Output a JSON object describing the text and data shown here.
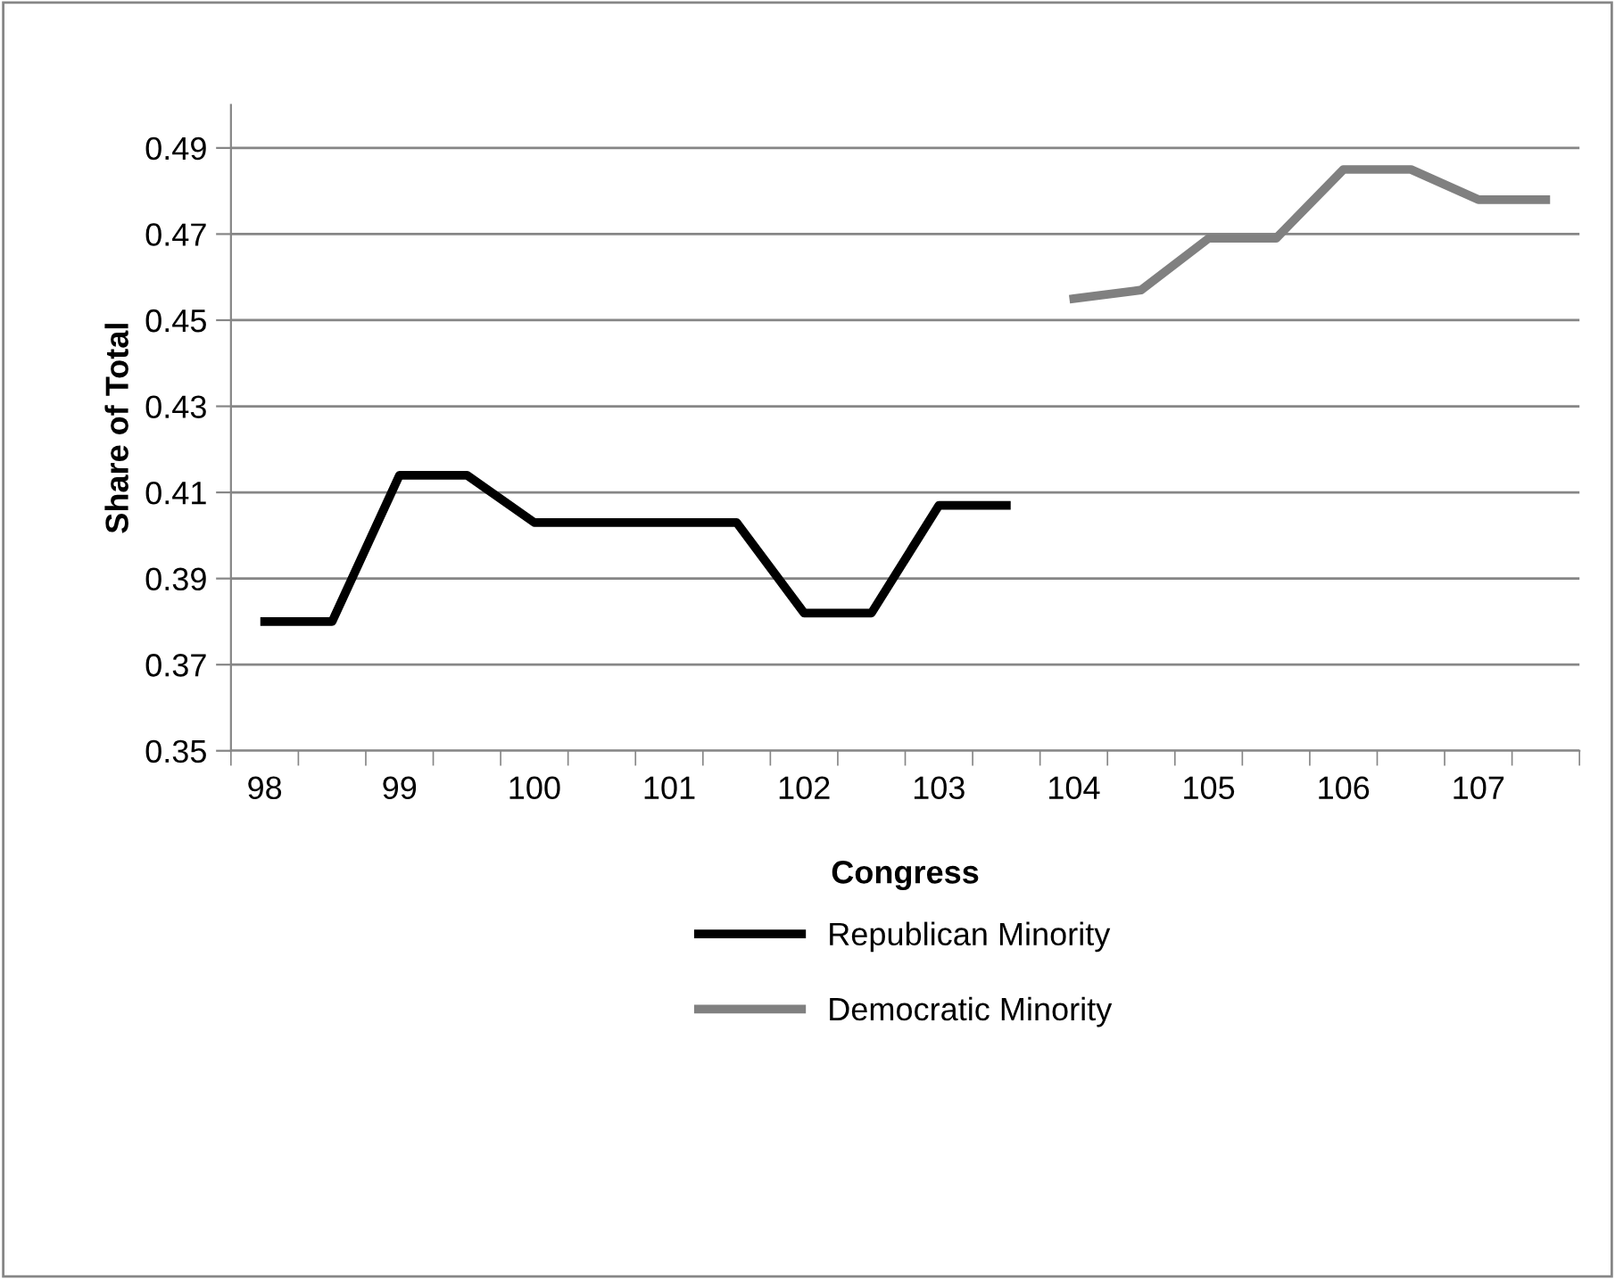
{
  "chart_data": {
    "type": "line",
    "xlabel": "Congress",
    "ylabel": "Share of Total",
    "categories": [
      "98",
      null,
      "99",
      null,
      "100",
      null,
      "101",
      null,
      "102",
      null,
      "103",
      null,
      "104",
      null,
      "105",
      null,
      "106",
      null,
      "107",
      null
    ],
    "series": [
      {
        "name": "Republican Minority",
        "color": "#000000",
        "values": [
          0.38,
          0.38,
          0.414,
          0.414,
          0.403,
          0.403,
          0.403,
          0.403,
          0.382,
          0.382,
          0.407,
          0.407,
          null,
          null,
          null,
          null,
          null,
          null,
          null,
          null
        ]
      },
      {
        "name": "Democratic Minority",
        "color": "#808080",
        "values": [
          null,
          null,
          null,
          null,
          null,
          null,
          null,
          null,
          null,
          null,
          null,
          null,
          0.455,
          0.457,
          0.469,
          0.469,
          0.485,
          0.485,
          0.478,
          0.478
        ]
      }
    ],
    "ylim": [
      0.35,
      0.5
    ],
    "yticks": [
      {
        "value": 0.35,
        "label": "0.35"
      },
      {
        "value": 0.37,
        "label": "0.37"
      },
      {
        "value": 0.39,
        "label": "0.39"
      },
      {
        "value": 0.41,
        "label": "0.41"
      },
      {
        "value": 0.43,
        "label": "0.43"
      },
      {
        "value": 0.45,
        "label": "0.45"
      },
      {
        "value": 0.47,
        "label": "0.47"
      },
      {
        "value": 0.49,
        "label": "0.49"
      }
    ],
    "grid": "y",
    "legend": "bottom",
    "marker": "none",
    "line_style": "solid"
  }
}
